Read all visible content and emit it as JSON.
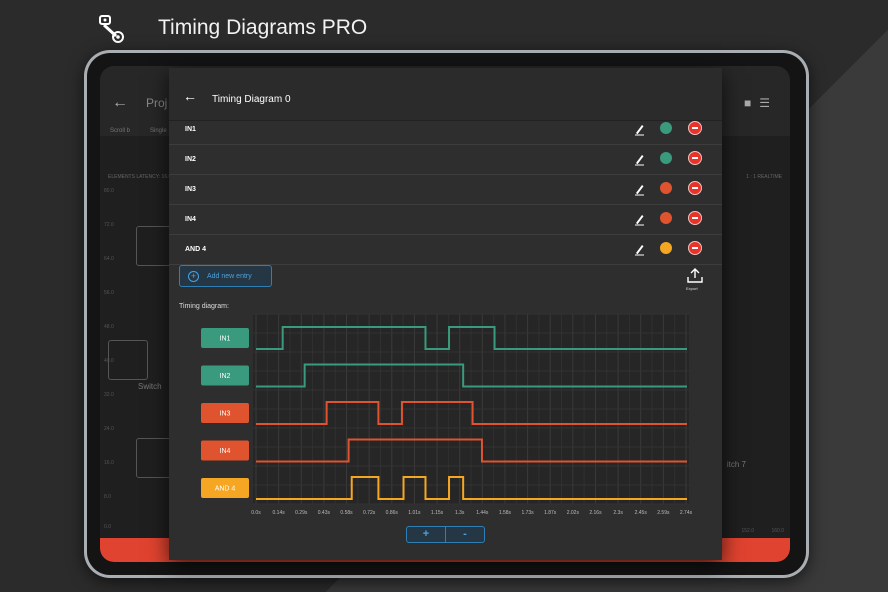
{
  "app": {
    "title": "Timing Diagrams PRO",
    "logo_icon": "timing-belt-icon"
  },
  "background_screen": {
    "title": "Proj",
    "tools": [
      "Scroll b",
      "Single"
    ],
    "latency_text": "ELEMENTS LATENCY: 16.0",
    "realtime_text": "1 : 1 REALTIME",
    "y_ticks": [
      "80.0",
      "72.0",
      "64.0",
      "56.0",
      "48.0",
      "40.0",
      "32.0",
      "24.0",
      "16.0",
      "8.0",
      "0.0"
    ],
    "x_ticks_right": [
      "152.0",
      "160.0"
    ],
    "switch_label": "Switch",
    "switch7_label": "itch 7",
    "accent_color": "#e0432f"
  },
  "dialog": {
    "title": "Timing Diagram 0",
    "back_icon": "arrow-left-icon",
    "entries": [
      {
        "name": "IN1",
        "color": "#3a9a7d"
      },
      {
        "name": "IN2",
        "color": "#3a9a7d"
      },
      {
        "name": "IN3",
        "color": "#e0532f"
      },
      {
        "name": "IN4",
        "color": "#e0532f"
      },
      {
        "name": "AND 4",
        "color": "#f5a623"
      }
    ],
    "add_entry_label": "Add new entry",
    "export_label": "Export",
    "timing_label": "Timing diagram:",
    "zoom_in_label": "+",
    "zoom_out_label": "-"
  },
  "chart_data": {
    "type": "line",
    "title": "",
    "xlabel": "",
    "ylabel": "",
    "x_ticks": [
      "0.0s",
      "0.14s",
      "0.29s",
      "0.43s",
      "0.58s",
      "0.72s",
      "0.86s",
      "1.01s",
      "1.15s",
      "1.3s",
      "1.44s",
      "1.58s",
      "1.73s",
      "1.87s",
      "2.02s",
      "2.16s",
      "2.3s",
      "2.45s",
      "2.59s",
      "2.74s"
    ],
    "xlim": [
      0,
      2.74
    ],
    "grid": true,
    "series": [
      {
        "name": "IN1",
        "color": "#3a9a7d",
        "transitions": [
          [
            0,
            0
          ],
          [
            0.17,
            1
          ],
          [
            1.08,
            0
          ],
          [
            1.23,
            1
          ],
          [
            1.52,
            0
          ]
        ]
      },
      {
        "name": "IN2",
        "color": "#3a9a7d",
        "transitions": [
          [
            0,
            0
          ],
          [
            0.31,
            1
          ],
          [
            1.32,
            0
          ]
        ]
      },
      {
        "name": "IN3",
        "color": "#e0532f",
        "transitions": [
          [
            0,
            0
          ],
          [
            0.45,
            1
          ],
          [
            0.78,
            0
          ],
          [
            0.93,
            1
          ],
          [
            1.38,
            0
          ]
        ]
      },
      {
        "name": "IN4",
        "color": "#e0532f",
        "transitions": [
          [
            0,
            0
          ],
          [
            0.59,
            1
          ],
          [
            1.44,
            0
          ]
        ]
      },
      {
        "name": "AND 4",
        "color": "#f5a623",
        "transitions": [
          [
            0,
            0
          ],
          [
            0.61,
            1
          ],
          [
            0.78,
            0
          ],
          [
            0.94,
            1
          ],
          [
            1.08,
            0
          ],
          [
            1.23,
            1
          ],
          [
            1.32,
            0
          ]
        ]
      }
    ]
  }
}
